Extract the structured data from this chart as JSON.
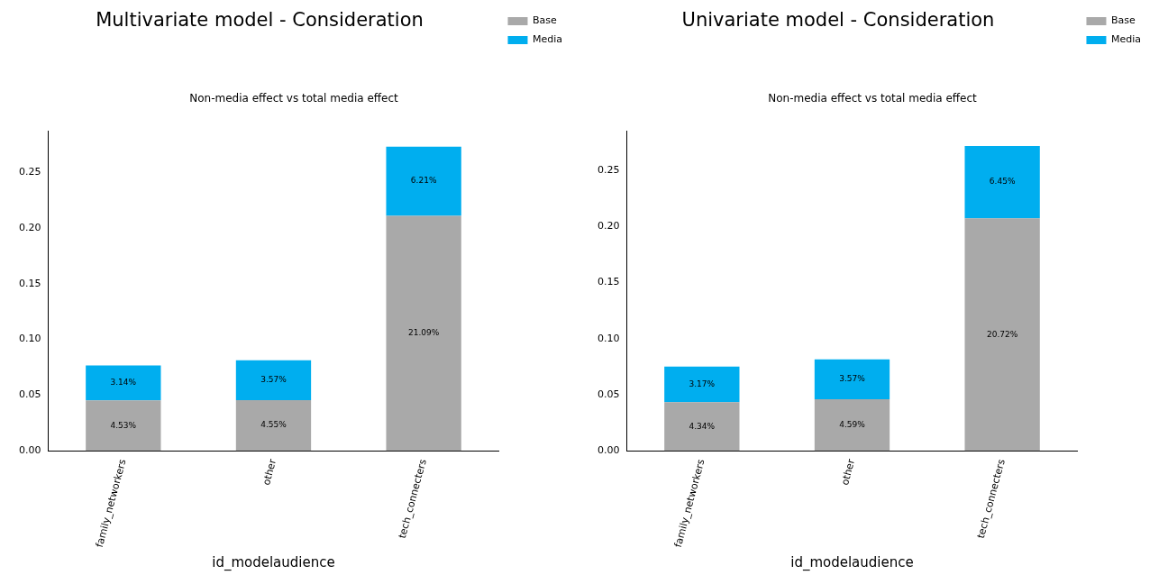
{
  "chart_data": [
    {
      "type": "bar",
      "title": "Multivariate model - Consideration",
      "subtitle": "Non-media effect vs total media effect",
      "xlabel": "id_modelaudience",
      "categories": [
        "family_networkers",
        "other",
        "tech_connecters"
      ],
      "stacked": true,
      "ylim": [
        0,
        0.287
      ],
      "yticks": [
        {
          "value": 0,
          "label": "0.00"
        },
        0.05,
        {
          "value": 0.1,
          "label": "0.10"
        },
        0.15,
        {
          "value": 0.2,
          "label": "0.20"
        },
        0.25
      ],
      "grid": false,
      "legend": "top right",
      "series": [
        {
          "name": "Base",
          "color": "#a9a9a9",
          "values": [
            0.0453,
            0.0455,
            0.2109
          ],
          "value_labels": [
            "4.53%",
            "4.55%",
            "21.09%"
          ]
        },
        {
          "name": "Media",
          "color": "#00aeef",
          "values": [
            0.0314,
            0.0357,
            0.0621
          ],
          "value_labels": [
            "3.14%",
            "3.57%",
            "6.21%"
          ]
        }
      ]
    },
    {
      "type": "bar",
      "title": "Univariate model - Consideration",
      "subtitle": "Non-media effect vs total media effect",
      "xlabel": "id_modelaudience",
      "categories": [
        "family_networkers",
        "other",
        "tech_connecters"
      ],
      "stacked": true,
      "ylim": [
        0,
        0.285
      ],
      "yticks": [
        {
          "value": 0,
          "label": "0.00"
        },
        0.05,
        {
          "value": 0.1,
          "label": "0.10"
        },
        0.15,
        {
          "value": 0.2,
          "label": "0.20"
        },
        0.25
      ],
      "grid": false,
      "legend": "top right",
      "series": [
        {
          "name": "Base",
          "color": "#a9a9a9",
          "values": [
            0.0434,
            0.0459,
            0.2072
          ],
          "value_labels": [
            "4.34%",
            "4.59%",
            "20.72%"
          ]
        },
        {
          "name": "Media",
          "color": "#00aeef",
          "values": [
            0.0317,
            0.0357,
            0.0645
          ],
          "value_labels": [
            "3.17%",
            "3.57%",
            "6.45%"
          ]
        }
      ]
    }
  ]
}
